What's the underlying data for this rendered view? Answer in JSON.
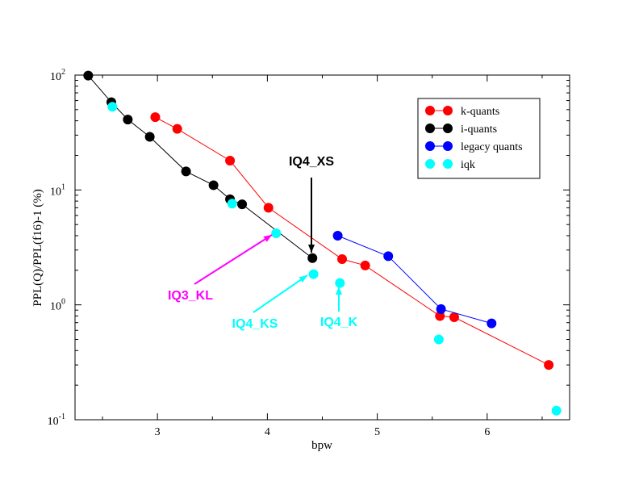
{
  "chart_data": {
    "type": "scatter",
    "xlabel": "bpw",
    "ylabel": "PPL(Q)/PPL(f16)-1 (%)",
    "y_scale": "log",
    "xlim": [
      2.25,
      6.75
    ],
    "ylim": [
      0.1,
      100
    ],
    "x_ticks": [
      "3",
      "4",
      "5",
      "6"
    ],
    "y_ticks": [
      {
        "base": "10",
        "exp": "-1"
      },
      {
        "base": "10",
        "exp": "0"
      },
      {
        "base": "10",
        "exp": "1"
      },
      {
        "base": "10",
        "exp": "2"
      }
    ],
    "grid": false,
    "legend_position": "top-right",
    "series": [
      {
        "name": "k-quants",
        "color": "#ff0000",
        "line": true,
        "x": [
          2.98,
          3.18,
          3.66,
          4.01,
          4.68,
          4.89,
          5.57,
          5.7,
          6.56
        ],
        "y": [
          43,
          34,
          18,
          7.0,
          2.5,
          2.2,
          0.8,
          0.78,
          0.3
        ]
      },
      {
        "name": "i-quants",
        "color": "#000000",
        "line": true,
        "x": [
          2.37,
          2.58,
          2.73,
          2.93,
          3.26,
          3.51,
          3.66,
          3.77,
          4.41
        ],
        "y": [
          99,
          58,
          41,
          29,
          14.5,
          11,
          8.3,
          7.5,
          2.55
        ]
      },
      {
        "name": "legacy quants",
        "color": "#0000ff",
        "line": true,
        "x": [
          4.64,
          5.1,
          5.58,
          6.04
        ],
        "y": [
          4.0,
          2.65,
          0.92,
          0.69
        ]
      },
      {
        "name": "iqk",
        "color": "#00ffff",
        "line": false,
        "x": [
          2.59,
          3.68,
          4.08,
          4.42,
          4.66,
          5.56,
          6.63
        ],
        "y": [
          53,
          7.6,
          4.2,
          1.85,
          1.55,
          0.5,
          0.12
        ]
      }
    ],
    "annotations": [
      {
        "text": "IQ4_XS",
        "color": "#000000",
        "target_x": 4.41,
        "target_y": 2.55
      },
      {
        "text": "IQ3_KL",
        "color": "#ff00ff",
        "target_x": 4.08,
        "target_y": 4.2
      },
      {
        "text": "IQ4_KS",
        "color": "#00ffff",
        "target_x": 4.42,
        "target_y": 1.85
      },
      {
        "text": "IQ4_K",
        "color": "#00ffff",
        "target_x": 4.66,
        "target_y": 1.55
      }
    ]
  }
}
